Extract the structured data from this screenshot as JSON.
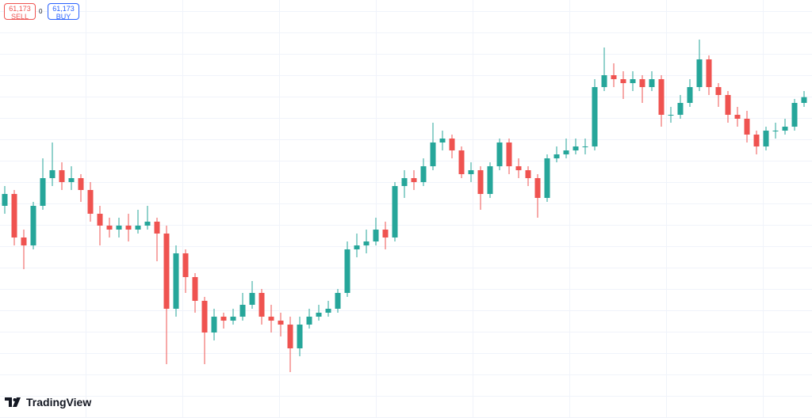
{
  "trade_panel": {
    "sell_price": "61,173",
    "sell_label": "SELL",
    "spread": "0",
    "buy_price": "61,173",
    "buy_label": "BUY"
  },
  "brand": "TradingView",
  "chart_data": {
    "type": "candlestick",
    "up_color": "#26a69a",
    "down_color": "#ef5350",
    "ylim": [
      57120,
      62400
    ],
    "open": [
      59800,
      59950,
      59400,
      59300,
      59800,
      60150,
      60250,
      60100,
      60150,
      60000,
      59700,
      59550,
      59500,
      59550,
      59500,
      59550,
      59600,
      59450,
      58500,
      59200,
      58900,
      58600,
      58200,
      58400,
      58350,
      58400,
      58550,
      58700,
      58400,
      58350,
      58300,
      58000,
      58300,
      58400,
      58450,
      58500,
      58700,
      59250,
      59300,
      59350,
      59500,
      59400,
      60050,
      60150,
      60100,
      60300,
      60600,
      60650,
      60500,
      60200,
      60250,
      59950,
      60300,
      60600,
      60300,
      60250,
      60150,
      59900,
      60400,
      60450,
      60500,
      60550,
      60550,
      61300,
      61450,
      61400,
      61350,
      61400,
      61300,
      61400,
      60950,
      60950,
      61100,
      61300,
      61650,
      61300,
      61200,
      60950,
      60900,
      60700,
      60550,
      60750,
      60750,
      60800,
      61100
    ],
    "high": [
      60050,
      60000,
      59500,
      59850,
      60400,
      60600,
      60350,
      60300,
      60200,
      60100,
      59800,
      59650,
      59650,
      59700,
      59750,
      59800,
      59650,
      59550,
      59300,
      59250,
      58950,
      58650,
      58500,
      58450,
      58500,
      58700,
      58850,
      58750,
      58550,
      58450,
      58400,
      58400,
      58500,
      58550,
      58600,
      58750,
      59350,
      59450,
      59500,
      59650,
      59600,
      60100,
      60250,
      60250,
      60400,
      60850,
      60750,
      60700,
      60550,
      60350,
      60300,
      60350,
      60650,
      60650,
      60400,
      60300,
      60200,
      60450,
      60550,
      60650,
      60650,
      60650,
      61400,
      61800,
      61600,
      61500,
      61500,
      61450,
      61500,
      61450,
      61050,
      61200,
      61400,
      61900,
      61700,
      61350,
      61250,
      61050,
      61000,
      60750,
      60800,
      60850,
      60900,
      61150,
      61250
    ],
    "low": [
      59700,
      59300,
      59000,
      59250,
      59750,
      60050,
      60000,
      60000,
      59850,
      59600,
      59300,
      59400,
      59400,
      59350,
      59450,
      59500,
      59100,
      57800,
      58400,
      58700,
      58450,
      57800,
      58100,
      58250,
      58300,
      58350,
      58500,
      58300,
      58200,
      58150,
      57700,
      57900,
      58250,
      58350,
      58400,
      58450,
      58650,
      59150,
      59200,
      59300,
      59250,
      59350,
      59900,
      60000,
      60050,
      60250,
      60500,
      60400,
      60150,
      60100,
      59750,
      59900,
      60250,
      60200,
      60150,
      60050,
      59650,
      59850,
      60350,
      60400,
      60450,
      60450,
      60500,
      61250,
      61300,
      61150,
      61250,
      61100,
      61250,
      60800,
      60850,
      60900,
      61050,
      61250,
      61200,
      61050,
      60850,
      60800,
      60600,
      60450,
      60500,
      60650,
      60700,
      60750,
      61050
    ],
    "close": [
      59950,
      59400,
      59300,
      59800,
      60150,
      60250,
      60100,
      60150,
      60000,
      59700,
      59550,
      59500,
      59550,
      59500,
      59550,
      59600,
      59450,
      58500,
      59200,
      58900,
      58600,
      58200,
      58400,
      58350,
      58400,
      58550,
      58700,
      58400,
      58350,
      58300,
      58000,
      58300,
      58400,
      58450,
      58500,
      58700,
      59250,
      59300,
      59350,
      59500,
      59400,
      60050,
      60150,
      60100,
      60300,
      60600,
      60650,
      60500,
      60200,
      60250,
      59950,
      60300,
      60600,
      60300,
      60250,
      60150,
      59900,
      60400,
      60450,
      60500,
      60550,
      60550,
      61300,
      61450,
      61400,
      61350,
      61400,
      61300,
      61400,
      60950,
      60950,
      61100,
      61300,
      61650,
      61300,
      61200,
      60950,
      60900,
      60700,
      60550,
      60750,
      60750,
      60800,
      61100,
      61173
    ]
  }
}
